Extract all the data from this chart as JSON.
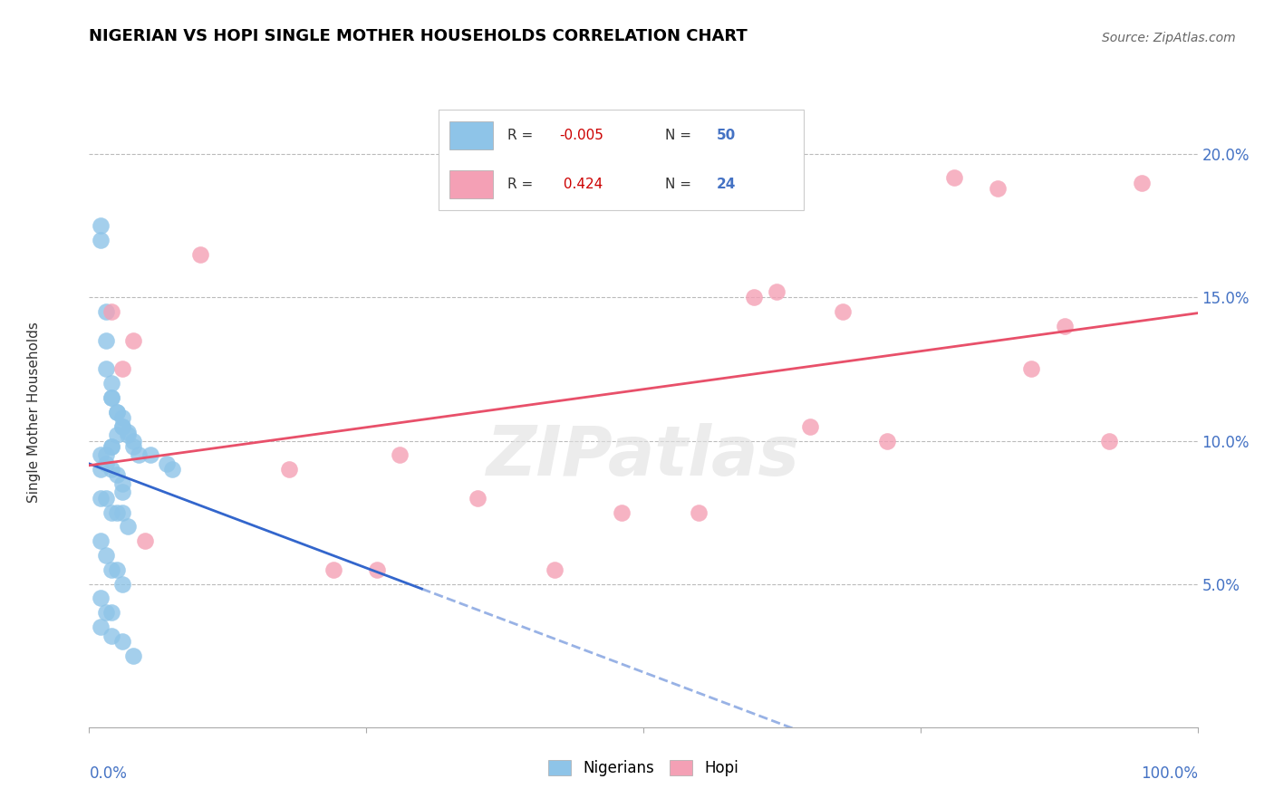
{
  "title": "NIGERIAN VS HOPI SINGLE MOTHER HOUSEHOLDS CORRELATION CHART",
  "source": "Source: ZipAtlas.com",
  "ylabel": "Single Mother Households",
  "legend_nigerian_R": "-0.005",
  "legend_nigerian_N": "50",
  "legend_hopi_R": "0.424",
  "legend_hopi_N": "24",
  "nigerian_color": "#8ec4e8",
  "hopi_color": "#f4a0b5",
  "nigerian_line_color": "#3366cc",
  "hopi_line_color": "#e8506a",
  "watermark": "ZIPatlas",
  "xlim": [
    0,
    100
  ],
  "ylim": [
    0,
    22
  ],
  "yticks": [
    5,
    10,
    15,
    20
  ],
  "ytick_labels": [
    "5.0%",
    "10.0%",
    "15.0%",
    "20.0%"
  ],
  "nigerian_x": [
    1.0,
    1.0,
    1.5,
    1.5,
    1.5,
    2.0,
    2.0,
    2.0,
    2.5,
    2.5,
    3.0,
    3.0,
    3.0,
    3.5,
    3.5,
    4.0,
    4.0,
    4.5,
    1.0,
    1.5,
    2.0,
    2.5,
    3.0,
    1.0,
    1.5,
    2.0,
    2.5,
    3.0,
    3.5,
    1.0,
    1.5,
    2.0,
    2.5,
    1.0,
    1.5,
    2.0,
    2.5,
    3.0,
    7.0,
    7.5,
    1.0,
    1.5,
    2.0,
    1.0,
    2.0,
    3.0,
    4.0,
    3.0,
    2.0,
    5.5
  ],
  "nigerian_y": [
    17.5,
    17.0,
    14.5,
    13.5,
    12.5,
    12.0,
    11.5,
    11.5,
    11.0,
    11.0,
    10.8,
    10.5,
    10.5,
    10.3,
    10.2,
    10.0,
    9.8,
    9.5,
    9.5,
    9.2,
    9.0,
    8.8,
    8.5,
    8.0,
    8.0,
    7.5,
    7.5,
    7.5,
    7.0,
    9.0,
    9.5,
    9.8,
    10.2,
    6.5,
    6.0,
    5.5,
    5.5,
    5.0,
    9.2,
    9.0,
    4.5,
    4.0,
    4.0,
    3.5,
    3.2,
    3.0,
    2.5,
    8.2,
    9.8,
    9.5
  ],
  "hopi_x": [
    2.0,
    3.0,
    4.0,
    5.0,
    22.0,
    28.0,
    35.0,
    42.0,
    48.0,
    55.0,
    60.0,
    65.0,
    68.0,
    72.0,
    78.0,
    82.0,
    85.0,
    88.0,
    92.0,
    95.0,
    62.0,
    10.0,
    18.0,
    26.0
  ],
  "hopi_y": [
    14.5,
    12.5,
    13.5,
    6.5,
    5.5,
    9.5,
    8.0,
    5.5,
    7.5,
    7.5,
    15.0,
    10.5,
    14.5,
    10.0,
    19.2,
    18.8,
    12.5,
    14.0,
    10.0,
    19.0,
    15.2,
    16.5,
    9.0,
    5.5
  ]
}
